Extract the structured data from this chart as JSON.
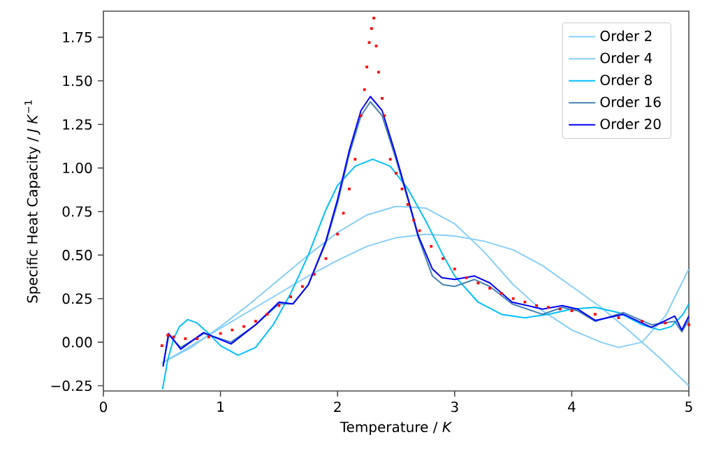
{
  "chart_data": {
    "type": "line",
    "xlabel": "Temperature / *K*",
    "ylabel": "Specific Heat Capacity / *J K*$^{−1}$",
    "xlim": [
      0,
      5
    ],
    "ylim": [
      -0.28,
      1.9
    ],
    "xticks": [
      0,
      1,
      2,
      3,
      4,
      5
    ],
    "yticks": [
      {
        "value": -0.25,
        "label": "−0.25"
      },
      {
        "value": 0,
        "label": "0.00"
      },
      {
        "value": 0.25,
        "label": "0.25"
      },
      {
        "value": 0.5,
        "label": "0.50"
      },
      {
        "value": 0.75,
        "label": "0.75"
      },
      {
        "value": 1,
        "label": "1.00"
      },
      {
        "value": 1.25,
        "label": "1.25"
      },
      {
        "value": 1.5,
        "label": "1.50"
      },
      {
        "value": 1.75,
        "label": "1.75"
      }
    ],
    "legend": "top right",
    "grid": false,
    "marker": "none",
    "series": [
      {
        "name": "Order 2",
        "color": "#87cefa",
        "x": [
          0.5,
          0.75,
          1.0,
          1.25,
          1.5,
          1.75,
          2.0,
          2.25,
          2.5,
          2.75,
          3.0,
          3.25,
          3.5,
          3.75,
          4.0,
          4.25,
          4.5,
          4.75,
          5.0
        ],
        "values": [
          -0.12,
          -0.02,
          0.08,
          0.18,
          0.28,
          0.38,
          0.47,
          0.55,
          0.6,
          0.62,
          0.61,
          0.58,
          0.53,
          0.44,
          0.32,
          0.2,
          0.06,
          -0.09,
          -0.25
        ]
      },
      {
        "name": "Order 4",
        "color": "#87cefa",
        "x": [
          0.5,
          0.75,
          1.0,
          1.25,
          1.5,
          1.75,
          2.0,
          2.25,
          2.5,
          2.75,
          3.0,
          3.25,
          3.5,
          3.75,
          4.0,
          4.25,
          4.4,
          4.6,
          4.8,
          5.0
        ],
        "values": [
          -0.12,
          -0.03,
          0.09,
          0.22,
          0.36,
          0.5,
          0.63,
          0.73,
          0.78,
          0.77,
          0.68,
          0.52,
          0.33,
          0.18,
          0.07,
          0.0,
          -0.03,
          0.0,
          0.15,
          0.42
        ]
      },
      {
        "name": "Order 8",
        "color": "#00bfff",
        "x": [
          0.505,
          0.55,
          0.6,
          0.65,
          0.72,
          0.8,
          0.9,
          1.0,
          1.15,
          1.3,
          1.45,
          1.6,
          1.75,
          1.9,
          2.0,
          2.15,
          2.3,
          2.45,
          2.6,
          2.75,
          2.9,
          3.0,
          3.2,
          3.4,
          3.6,
          3.8,
          4.0,
          4.2,
          4.4,
          4.6,
          4.75,
          4.85,
          4.95,
          5.0
        ],
        "values": [
          -0.27,
          -0.1,
          0.02,
          0.09,
          0.13,
          0.11,
          0.05,
          -0.02,
          -0.075,
          -0.03,
          0.1,
          0.28,
          0.5,
          0.76,
          0.9,
          1.01,
          1.05,
          1.01,
          0.88,
          0.7,
          0.5,
          0.38,
          0.23,
          0.16,
          0.14,
          0.16,
          0.19,
          0.2,
          0.17,
          0.1,
          0.07,
          0.09,
          0.16,
          0.22
        ]
      },
      {
        "name": "Order 16",
        "color": "#4682b4",
        "x": [
          0.51,
          0.56,
          0.66,
          0.86,
          1.09,
          1.3,
          1.5,
          1.62,
          1.75,
          1.9,
          2.0,
          2.1,
          2.2,
          2.28,
          2.38,
          2.49,
          2.6,
          2.69,
          2.81,
          2.9,
          3.0,
          3.17,
          3.3,
          3.49,
          3.75,
          3.92,
          4.05,
          4.2,
          4.44,
          4.68,
          4.88,
          4.94,
          5.0
        ],
        "values": [
          -0.13,
          0.04,
          -0.03,
          0.05,
          -0.0,
          0.1,
          0.22,
          0.22,
          0.33,
          0.57,
          0.8,
          1.08,
          1.3,
          1.38,
          1.3,
          1.07,
          0.82,
          0.6,
          0.38,
          0.33,
          0.32,
          0.36,
          0.32,
          0.22,
          0.16,
          0.2,
          0.18,
          0.12,
          0.17,
          0.1,
          0.12,
          0.06,
          0.13
        ]
      },
      {
        "name": "Order 20",
        "color": "#0000ff",
        "x": [
          0.51,
          0.556,
          0.66,
          0.855,
          1.09,
          1.3,
          1.5,
          1.62,
          1.75,
          1.9,
          2.0,
          2.1,
          2.2,
          2.28,
          2.38,
          2.49,
          2.6,
          2.69,
          2.81,
          2.89,
          3.0,
          3.17,
          3.3,
          3.49,
          3.75,
          3.92,
          4.05,
          4.2,
          4.44,
          4.68,
          4.88,
          4.94,
          5.0
        ],
        "values": [
          -0.14,
          0.05,
          -0.04,
          0.055,
          -0.01,
          0.1,
          0.23,
          0.22,
          0.33,
          0.58,
          0.82,
          1.1,
          1.33,
          1.41,
          1.33,
          1.09,
          0.83,
          0.61,
          0.42,
          0.37,
          0.36,
          0.38,
          0.34,
          0.23,
          0.19,
          0.21,
          0.19,
          0.125,
          0.16,
          0.085,
          0.15,
          0.07,
          0.15
        ]
      },
      {
        "type": "scatter",
        "marker": "square",
        "color": "#ff0000",
        "x": [
          0.5,
          0.55,
          0.6,
          0.7,
          0.8,
          0.9,
          1.0,
          1.1,
          1.2,
          1.3,
          1.4,
          1.5,
          1.6,
          1.7,
          1.8,
          1.9,
          2.0,
          2.05,
          2.1,
          2.15,
          2.2,
          2.23,
          2.25,
          2.27,
          2.29,
          2.31,
          2.33,
          2.35,
          2.38,
          2.4,
          2.45,
          2.5,
          2.55,
          2.6,
          2.65,
          2.7,
          2.8,
          2.9,
          3.0,
          3.1,
          3.2,
          3.3,
          3.4,
          3.5,
          3.6,
          3.7,
          3.8,
          3.9,
          4.0,
          4.2,
          4.4,
          4.6,
          4.8,
          5.0
        ],
        "values": [
          -0.02,
          0.04,
          0.03,
          0.02,
          0.02,
          0.03,
          0.05,
          0.07,
          0.09,
          0.12,
          0.16,
          0.21,
          0.26,
          0.32,
          0.39,
          0.48,
          0.62,
          0.74,
          0.88,
          1.05,
          1.3,
          1.45,
          1.58,
          1.72,
          1.8,
          1.86,
          1.7,
          1.55,
          1.4,
          1.3,
          1.05,
          0.97,
          0.88,
          0.79,
          0.7,
          0.64,
          0.55,
          0.48,
          0.42,
          0.37,
          0.34,
          0.31,
          0.28,
          0.25,
          0.23,
          0.21,
          0.2,
          0.19,
          0.18,
          0.16,
          0.14,
          0.12,
          0.11,
          0.1
        ]
      }
    ]
  }
}
